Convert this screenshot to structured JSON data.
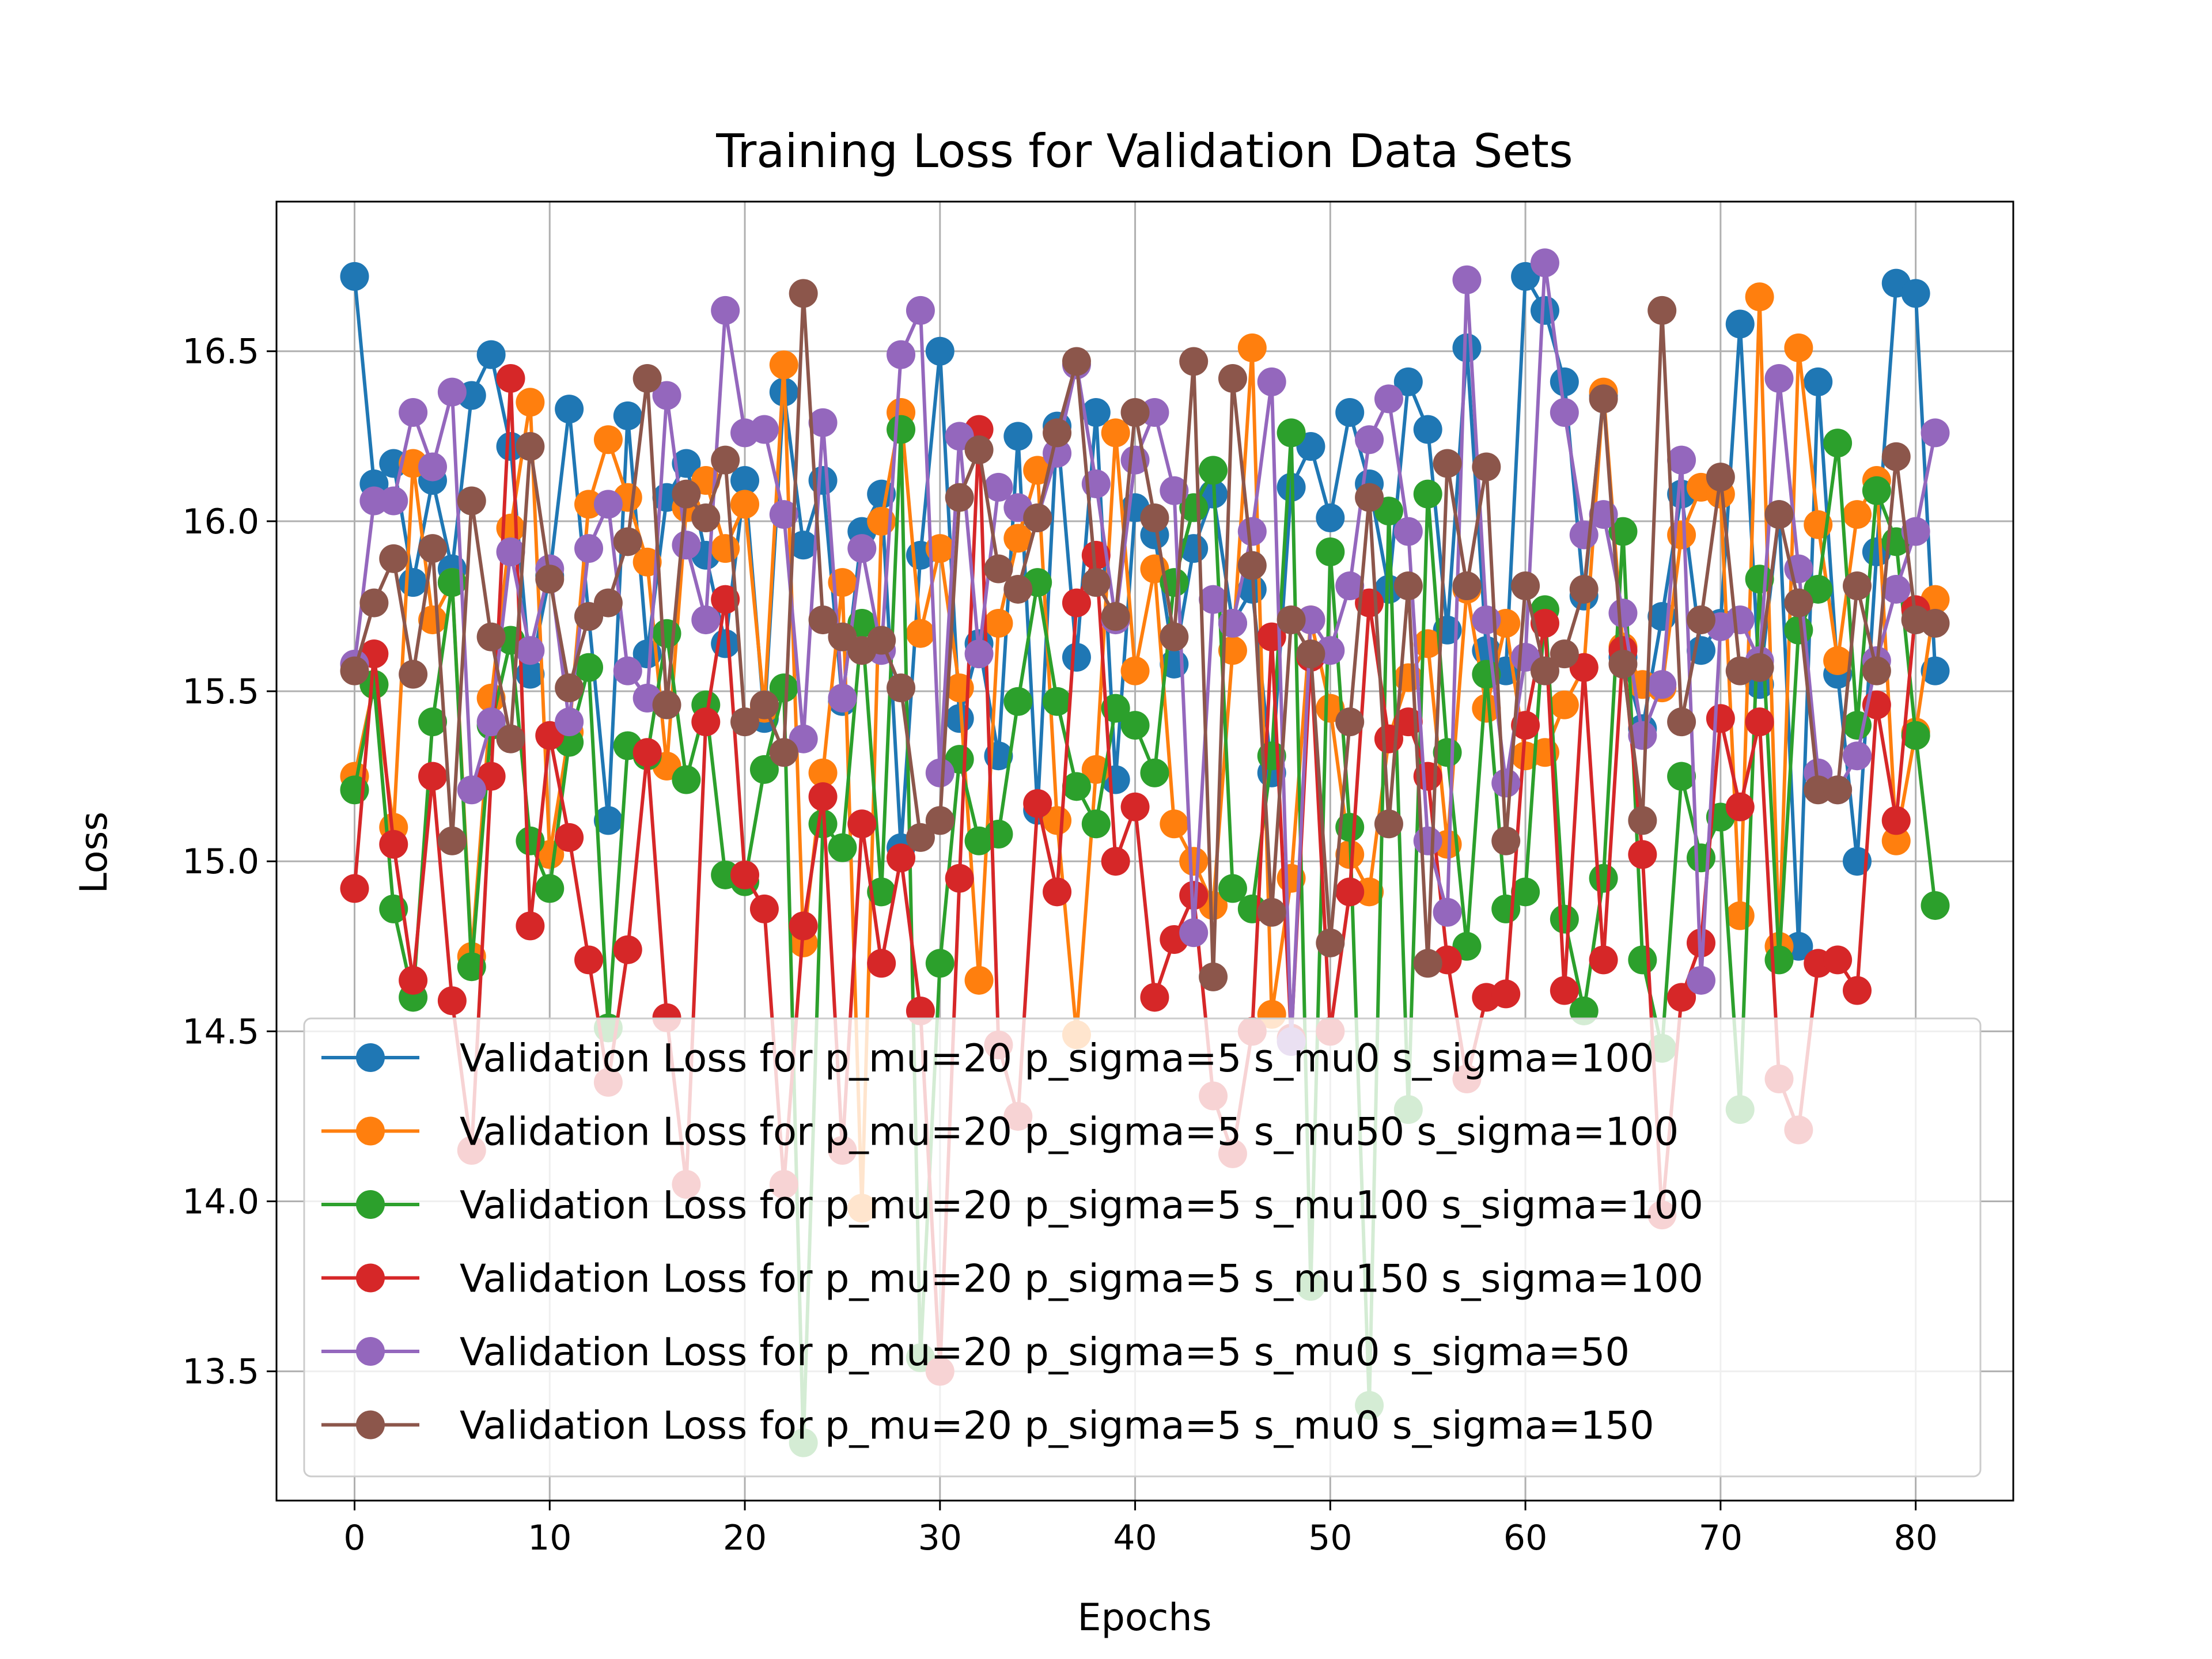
{
  "chart_data": {
    "type": "line",
    "title": "Training Loss for Validation Data Sets",
    "xlabel": "Epochs",
    "ylabel": "Loss",
    "xlim": [
      -4,
      85
    ],
    "ylim": [
      13.12,
      16.94
    ],
    "xticks": [
      0,
      10,
      20,
      30,
      40,
      50,
      60,
      70,
      80
    ],
    "yticks": [
      13.5,
      14.0,
      14.5,
      15.0,
      15.5,
      16.0,
      16.5
    ],
    "ytick_labels": [
      "13.5",
      "14.0",
      "14.5",
      "15.0",
      "15.5",
      "16.0",
      "16.5"
    ],
    "grid": true,
    "legend_position": "lower-center",
    "series": [
      {
        "name": "Validation Loss for p_mu=20 p_sigma=5 s_mu0 s_sigma=100",
        "color": "#1f77b4",
        "values": [
          16.72,
          16.11,
          16.17,
          15.82,
          16.12,
          15.86,
          16.37,
          16.49,
          16.22,
          15.55,
          15.84,
          16.33,
          15.72,
          15.12,
          16.31,
          15.61,
          16.07,
          16.17,
          15.9,
          15.64,
          16.12,
          15.42,
          16.38,
          15.93,
          16.12,
          15.47,
          15.97,
          16.08,
          15.04,
          15.9,
          16.5,
          15.42,
          15.64,
          15.31,
          16.25,
          15.15,
          16.28,
          15.6,
          16.32,
          15.24,
          16.04,
          15.96,
          15.58,
          15.92,
          16.08,
          15.7,
          15.8,
          15.26,
          16.1,
          16.22,
          16.01,
          16.32,
          16.11,
          15.8,
          16.41,
          16.27,
          15.68,
          16.51,
          15.62,
          15.56,
          16.72,
          16.62,
          16.41,
          15.78,
          16.37,
          15.6,
          15.39,
          15.72,
          16.08,
          15.62,
          15.7,
          16.58,
          15.52,
          16.02,
          14.75,
          16.41,
          15.55,
          15.0,
          15.91,
          16.7,
          16.67,
          15.56
        ]
      },
      {
        "name": "Validation Loss for p_mu=20 p_sigma=5 s_mu50 s_sigma=100",
        "color": "#ff7f0e",
        "values": [
          15.25,
          15.52,
          15.1,
          16.17,
          15.71,
          15.82,
          14.72,
          15.48,
          15.98,
          16.35,
          15.02,
          15.38,
          16.05,
          16.24,
          16.07,
          15.88,
          15.28,
          16.04,
          16.12,
          15.92,
          16.05,
          15.45,
          16.46,
          14.76,
          15.26,
          15.82,
          13.98,
          16.0,
          16.32,
          15.67,
          15.92,
          15.51,
          14.65,
          15.7,
          15.95,
          16.15,
          15.12,
          14.49,
          15.27,
          16.26,
          15.56,
          15.86,
          15.11,
          15.0,
          14.87,
          15.62,
          16.51,
          14.55,
          14.95,
          15.71,
          15.45,
          15.02,
          14.91,
          15.36,
          15.54,
          15.64,
          15.05,
          15.8,
          15.45,
          15.7,
          15.31,
          15.32,
          15.46,
          15.57,
          16.38,
          15.63,
          15.52,
          15.51,
          15.96,
          16.1,
          16.08,
          14.84,
          16.66,
          14.75,
          16.51,
          15.99,
          15.59,
          16.02,
          16.12,
          15.06,
          15.38,
          15.77
        ]
      },
      {
        "name": "Validation Loss for p_mu=20 p_sigma=5 s_mu100 s_sigma=100",
        "color": "#2ca02c",
        "values": [
          15.21,
          15.52,
          14.86,
          14.6,
          15.41,
          15.82,
          14.69,
          15.4,
          15.65,
          15.06,
          14.92,
          15.35,
          15.57,
          14.51,
          15.34,
          15.31,
          15.67,
          15.24,
          15.46,
          14.96,
          14.94,
          15.27,
          15.51,
          13.29,
          15.11,
          15.04,
          15.7,
          14.91,
          16.27,
          13.54,
          14.7,
          15.3,
          15.06,
          15.08,
          15.47,
          15.82,
          15.47,
          15.22,
          15.11,
          15.45,
          15.4,
          15.26,
          15.82,
          16.04,
          16.15,
          14.92,
          14.86,
          15.31,
          16.26,
          13.75,
          15.91,
          15.1,
          13.4,
          16.03,
          14.27,
          16.08,
          15.32,
          14.75,
          15.55,
          14.86,
          14.91,
          15.74,
          14.83,
          14.56,
          14.95,
          15.97,
          14.71,
          14.45,
          15.25,
          15.01,
          15.13,
          14.27,
          15.83,
          14.71,
          15.68,
          15.8,
          16.23,
          15.4,
          16.09,
          15.94,
          15.37,
          14.87
        ]
      },
      {
        "name": "Validation Loss for p_mu=20 p_sigma=5 s_mu150 s_sigma=100",
        "color": "#d62728",
        "values": [
          14.92,
          15.61,
          15.05,
          14.65,
          15.25,
          14.59,
          14.15,
          15.25,
          16.42,
          14.81,
          15.37,
          15.07,
          14.71,
          14.35,
          14.74,
          15.32,
          14.54,
          14.05,
          15.41,
          15.77,
          14.96,
          14.86,
          14.05,
          14.81,
          15.19,
          14.15,
          15.11,
          14.7,
          15.01,
          14.56,
          13.5,
          14.95,
          16.27,
          14.46,
          14.25,
          15.17,
          14.91,
          15.76,
          15.9,
          15.0,
          15.16,
          14.6,
          14.77,
          14.9,
          14.31,
          14.14,
          14.5,
          15.66,
          14.48,
          15.6,
          14.5,
          14.91,
          15.76,
          15.36,
          15.41,
          15.25,
          14.71,
          14.36,
          14.6,
          14.61,
          15.4,
          15.7,
          14.62,
          15.57,
          14.71,
          15.62,
          15.02,
          13.96,
          14.6,
          14.76,
          15.42,
          15.16,
          15.41,
          14.36,
          14.21,
          14.7,
          14.71,
          14.62,
          15.46,
          15.12,
          15.74
        ]
      },
      {
        "name": "Validation Loss for p_mu=20 p_sigma=5 s_mu0 s_sigma=50",
        "color": "#9467bd",
        "values": [
          15.58,
          16.06,
          16.06,
          16.32,
          16.16,
          16.38,
          15.21,
          15.41,
          15.91,
          15.62,
          15.86,
          15.41,
          15.92,
          16.05,
          15.56,
          15.48,
          16.37,
          15.93,
          15.71,
          16.62,
          16.26,
          16.27,
          16.02,
          15.36,
          16.29,
          15.48,
          15.92,
          15.62,
          16.49,
          16.62,
          15.26,
          16.25,
          15.61,
          16.1,
          16.04,
          16.01,
          16.2,
          16.46,
          16.11,
          15.71,
          16.18,
          16.32,
          16.09,
          14.79,
          15.77,
          15.7,
          15.97,
          16.41,
          14.47,
          15.71,
          15.62,
          15.81,
          16.24,
          16.36,
          15.97,
          15.06,
          14.85,
          16.71,
          15.71,
          15.23,
          15.6,
          16.76,
          16.32,
          15.96,
          16.02,
          15.73,
          15.37,
          15.52,
          16.18,
          14.65,
          15.69,
          15.71,
          15.59,
          16.42,
          15.86,
          15.26,
          15.21,
          15.31,
          15.59,
          15.8,
          15.97,
          16.26
        ]
      },
      {
        "name": "Validation Loss for p_mu=20 p_sigma=5 s_mu0 s_sigma=150",
        "color": "#8c564b",
        "values": [
          15.56,
          15.76,
          15.89,
          15.55,
          15.92,
          15.06,
          16.06,
          15.66,
          15.36,
          16.22,
          15.83,
          15.51,
          15.72,
          15.76,
          15.94,
          16.42,
          15.46,
          16.08,
          16.01,
          16.18,
          15.41,
          15.46,
          15.32,
          16.67,
          15.71,
          15.66,
          15.62,
          15.65,
          15.51,
          15.07,
          15.12,
          16.07,
          16.21,
          15.86,
          15.8,
          16.01,
          16.26,
          16.47,
          15.82,
          15.72,
          16.32,
          16.01,
          15.66,
          16.47,
          14.66,
          16.42,
          15.87,
          14.85,
          15.71,
          15.61,
          14.76,
          15.41,
          16.07,
          15.11,
          15.81,
          14.7,
          16.17,
          15.81,
          16.16,
          15.06,
          15.81,
          15.56,
          15.61,
          15.8,
          16.36,
          15.58,
          15.12,
          16.62,
          15.41,
          15.71,
          16.13,
          15.56,
          15.57,
          16.02,
          15.76,
          15.21,
          15.21,
          15.81,
          15.56,
          16.19,
          15.71,
          15.7
        ]
      }
    ]
  }
}
